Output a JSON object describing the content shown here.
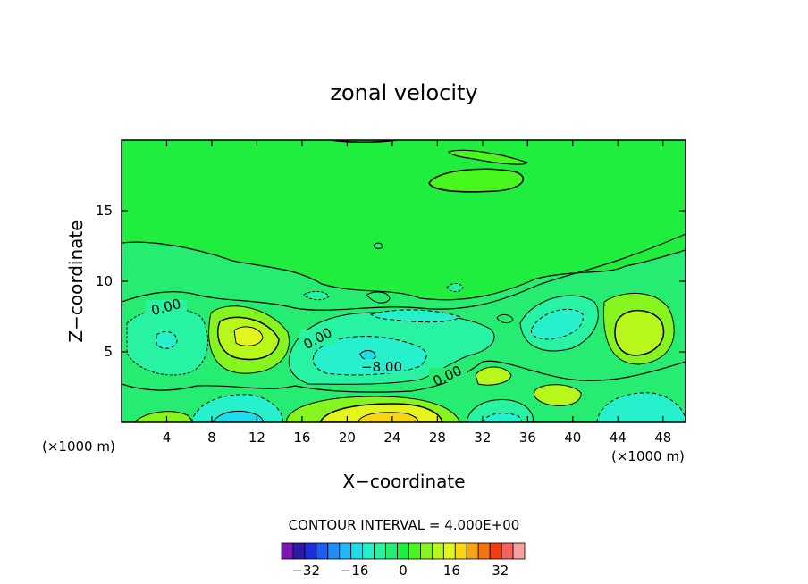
{
  "chart_data": {
    "type": "heatmap",
    "title": "zonal velocity",
    "xlabel": "X−coordinate",
    "ylabel": "Z−coordinate",
    "x_unit_left": "(×1000 m)",
    "x_unit_right": "(×1000 m)",
    "xlim": [
      0,
      50
    ],
    "ylim": [
      0,
      20
    ],
    "x_ticks": [
      4,
      8,
      12,
      16,
      20,
      24,
      28,
      32,
      36,
      40,
      44,
      48
    ],
    "y_ticks": [
      5,
      10,
      15
    ],
    "contour_interval_text": "CONTOUR INTERVAL = 4.000E+00",
    "contour_labels": [
      {
        "text": "0.00",
        "x": 4,
        "y": 8.3
      },
      {
        "text": "0.00",
        "x": 17.5,
        "y": 5.5
      },
      {
        "text": "−8.00",
        "x": 23,
        "y": 3.9
      },
      {
        "text": "0.00",
        "x": 29,
        "y": 3.0
      }
    ],
    "colorbar": {
      "levels": [
        -40,
        -36,
        -32,
        -28,
        -24,
        -20,
        -16,
        -12,
        -8,
        -4,
        0,
        4,
        8,
        12,
        16,
        20,
        24,
        28,
        32,
        36,
        40
      ],
      "colors": [
        "#7d15b0",
        "#2c1aa8",
        "#1c2fd6",
        "#1f5cf2",
        "#1f8ef7",
        "#23b8f5",
        "#20dcea",
        "#27f0cd",
        "#27f3a2",
        "#27ec72",
        "#20ee3e",
        "#47f71d",
        "#86f41e",
        "#b8f71c",
        "#e3f51c",
        "#f7d615",
        "#f7a412",
        "#f4720f",
        "#f23d10",
        "#f7615c",
        "#f7a09c"
      ],
      "tick_labels": [
        "−32",
        "−16",
        "0",
        "16",
        "32"
      ],
      "tick_values": [
        -32,
        -16,
        0,
        16,
        32
      ]
    },
    "grid": false,
    "colors": {
      "background_field": "#20ee3e",
      "lighter_green": "#47f71d",
      "yellowgreen": "#86f41e",
      "yellow": "#e3f51c",
      "orange": "#f7d615",
      "teal": "#27f3a2",
      "cyan": "#27f0cd",
      "aqua": "#20dcea"
    }
  }
}
